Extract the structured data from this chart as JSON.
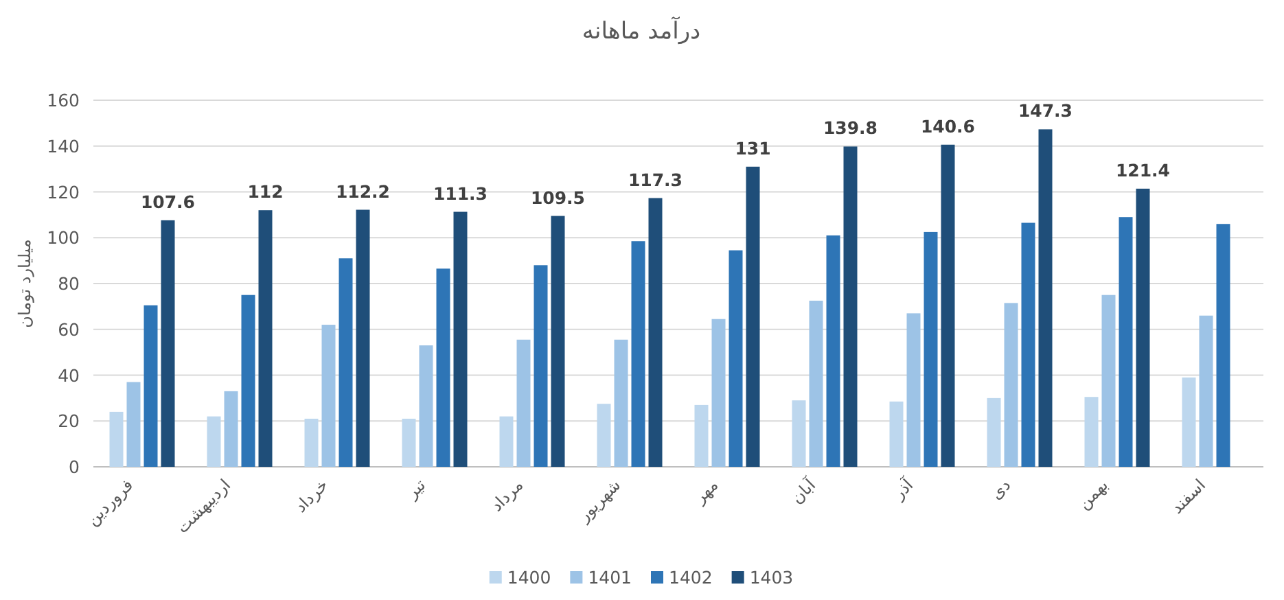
{
  "chart_data": {
    "type": "bar",
    "title": "درآمد ماهانه",
    "ylabel": "میلیارد تومان",
    "categories": [
      "فروردین",
      "اردیبهشت",
      "خرداد",
      "تیر",
      "مرداد",
      "شهریور",
      "مهر",
      "آبان",
      "آذر",
      "دی",
      "بهمن",
      "اسفند"
    ],
    "series": [
      {
        "name": "1400",
        "color": "#bdd7ee",
        "values": [
          24,
          22,
          21,
          21,
          22,
          27.5,
          27,
          29,
          28.5,
          30,
          30.5,
          39
        ]
      },
      {
        "name": "1401",
        "color": "#9dc3e6",
        "values": [
          37,
          33,
          62,
          53,
          55.5,
          55.5,
          64.5,
          72.5,
          67,
          71.5,
          75,
          66
        ]
      },
      {
        "name": "1402",
        "color": "#2e75b6",
        "values": [
          70.5,
          75,
          91,
          86.5,
          88,
          98.5,
          94.5,
          101,
          102.5,
          106.5,
          109,
          106
        ]
      },
      {
        "name": "1403",
        "color": "#1f4e79",
        "values": [
          107.6,
          112,
          112.2,
          111.3,
          109.5,
          117.3,
          131,
          139.8,
          140.6,
          147.3,
          121.4,
          null
        ],
        "value_labels": [
          "107.6",
          "112",
          "112.2",
          "111.3",
          "109.5",
          "117.3",
          "131",
          "139.8",
          "140.6",
          "147.3",
          "121.4",
          null
        ]
      }
    ],
    "ylim": [
      0,
      160
    ],
    "yticks": [
      0,
      20,
      40,
      60,
      80,
      100,
      120,
      140,
      160
    ],
    "grid": "y",
    "legend": "bottom"
  }
}
